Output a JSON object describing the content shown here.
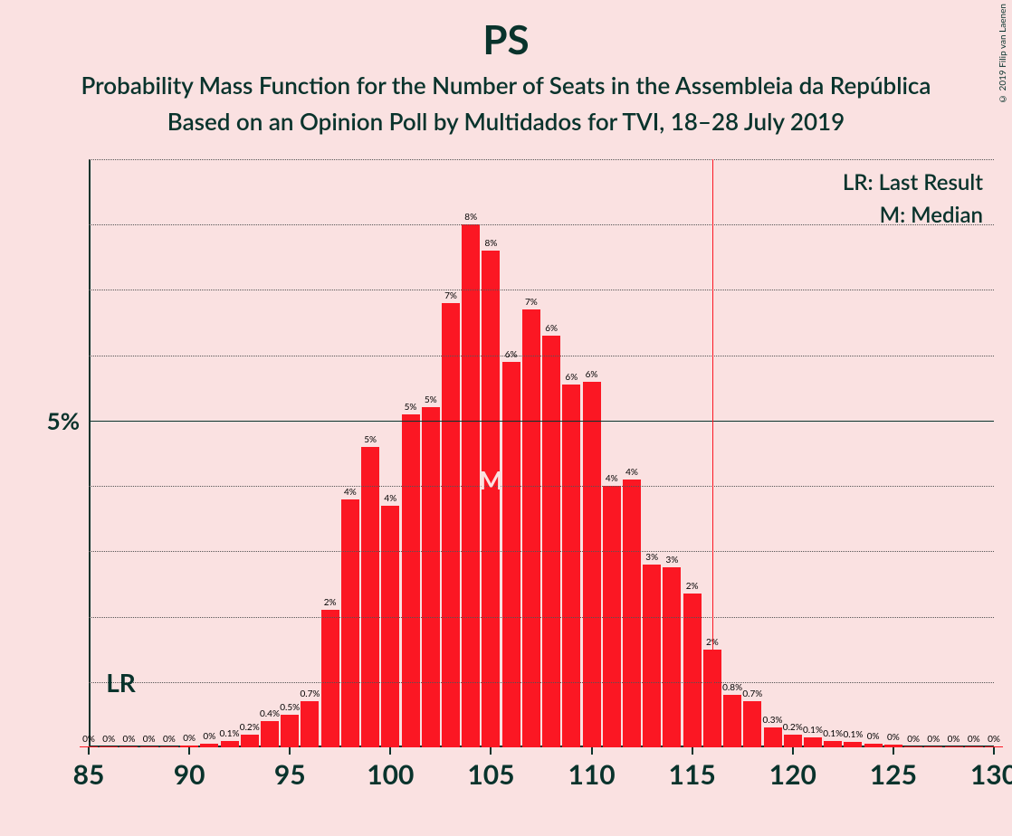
{
  "title": "PS",
  "subtitle1": "Probability Mass Function for the Number of Seats in the Assembleia da República",
  "subtitle2": "Based on an Opinion Poll by Multidados for TVI, 18–28 July 2019",
  "copyright": "© 2019 Filip van Laenen",
  "legend": {
    "lr": "LR: Last Result",
    "m": "M: Median"
  },
  "chart": {
    "type": "bar",
    "background_color": "#fae1e1",
    "bar_color": "#fb1723",
    "text_color": "#09332c",
    "grid_color": "#555555",
    "title_fontsize": 44,
    "subtitle_fontsize": 26,
    "axis_label_fontsize": 30,
    "bar_label_fontsize": 10,
    "xlim": [
      85,
      130
    ],
    "ylim": [
      0,
      9
    ],
    "y_major_ticks": [
      5
    ],
    "y_minor_step": 1,
    "x_tick_step": 5,
    "bar_width": 0.9,
    "lr_position": 86,
    "median_position": 105,
    "vline_position": 116,
    "bars": [
      {
        "x": 85,
        "label": "0%",
        "y": 0.02
      },
      {
        "x": 86,
        "label": "0%",
        "y": 0.02
      },
      {
        "x": 87,
        "label": "0%",
        "y": 0.02
      },
      {
        "x": 88,
        "label": "0%",
        "y": 0.02
      },
      {
        "x": 89,
        "label": "0%",
        "y": 0.02
      },
      {
        "x": 90,
        "label": "0%",
        "y": 0.03
      },
      {
        "x": 91,
        "label": "0%",
        "y": 0.05
      },
      {
        "x": 92,
        "label": "0.1%",
        "y": 0.1
      },
      {
        "x": 93,
        "label": "0.2%",
        "y": 0.2
      },
      {
        "x": 94,
        "label": "0.4%",
        "y": 0.4
      },
      {
        "x": 95,
        "label": "0.5%",
        "y": 0.5
      },
      {
        "x": 96,
        "label": "0.7%",
        "y": 0.7
      },
      {
        "x": 97,
        "label": "2%",
        "y": 2.1
      },
      {
        "x": 98,
        "label": "4%",
        "y": 3.8
      },
      {
        "x": 99,
        "label": "5%",
        "y": 4.6
      },
      {
        "x": 100,
        "label": "4%",
        "y": 3.7
      },
      {
        "x": 101,
        "label": "5%",
        "y": 5.1
      },
      {
        "x": 102,
        "label": "5%",
        "y": 5.2
      },
      {
        "x": 103,
        "label": "7%",
        "y": 6.8
      },
      {
        "x": 104,
        "label": "8%",
        "y": 8.0
      },
      {
        "x": 105,
        "label": "8%",
        "y": 7.6
      },
      {
        "x": 106,
        "label": "6%",
        "y": 5.9
      },
      {
        "x": 107,
        "label": "7%",
        "y": 6.7
      },
      {
        "x": 108,
        "label": "6%",
        "y": 6.3
      },
      {
        "x": 109,
        "label": "6%",
        "y": 5.55
      },
      {
        "x": 110,
        "label": "6%",
        "y": 5.6
      },
      {
        "x": 111,
        "label": "4%",
        "y": 4.0
      },
      {
        "x": 112,
        "label": "4%",
        "y": 4.1
      },
      {
        "x": 113,
        "label": "3%",
        "y": 2.8
      },
      {
        "x": 114,
        "label": "3%",
        "y": 2.75
      },
      {
        "x": 115,
        "label": "2%",
        "y": 2.35
      },
      {
        "x": 116,
        "label": "2%",
        "y": 1.5
      },
      {
        "x": 117,
        "label": "0.8%",
        "y": 0.8
      },
      {
        "x": 118,
        "label": "0.7%",
        "y": 0.7
      },
      {
        "x": 119,
        "label": "0.3%",
        "y": 0.3
      },
      {
        "x": 120,
        "label": "0.2%",
        "y": 0.2
      },
      {
        "x": 121,
        "label": "0.1%",
        "y": 0.15
      },
      {
        "x": 122,
        "label": "0.1%",
        "y": 0.1
      },
      {
        "x": 123,
        "label": "0.1%",
        "y": 0.08
      },
      {
        "x": 124,
        "label": "0%",
        "y": 0.05
      },
      {
        "x": 125,
        "label": "0%",
        "y": 0.04
      },
      {
        "x": 126,
        "label": "0%",
        "y": 0.02
      },
      {
        "x": 127,
        "label": "0%",
        "y": 0.02
      },
      {
        "x": 128,
        "label": "0%",
        "y": 0.02
      },
      {
        "x": 129,
        "label": "0%",
        "y": 0.02
      },
      {
        "x": 130,
        "label": "0%",
        "y": 0.02
      }
    ]
  }
}
